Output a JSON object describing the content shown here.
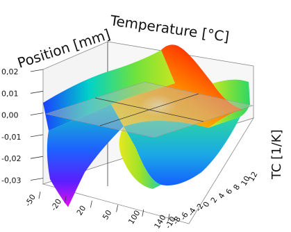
{
  "chart_data": {
    "type": "surface-3d",
    "title": "",
    "axes": {
      "x": {
        "label": "Temperature [°C]",
        "ticks": [
          "-50",
          "-20",
          "20",
          "50",
          "100",
          "140"
        ]
      },
      "y": {
        "label": "Position [mm]",
        "ticks": [
          "-10",
          "-8",
          "-6",
          "-4",
          "-2",
          "0",
          "2",
          "4",
          "6",
          "8",
          "10",
          "12"
        ]
      },
      "z": {
        "label": "TC [1/K]",
        "ticks": [
          "0,02",
          "0,01",
          "0,00",
          "-0,01",
          "-0,02",
          "-0,03"
        ],
        "range": [
          -0.035,
          0.025
        ]
      }
    },
    "reference_plane_z": 0.0,
    "colormap": [
      "#ff00ff",
      "#0000ff",
      "#00ffff",
      "#00ff00",
      "#ffff00",
      "#ff8800",
      "#ff0000"
    ],
    "grid": true,
    "legend": "none"
  }
}
